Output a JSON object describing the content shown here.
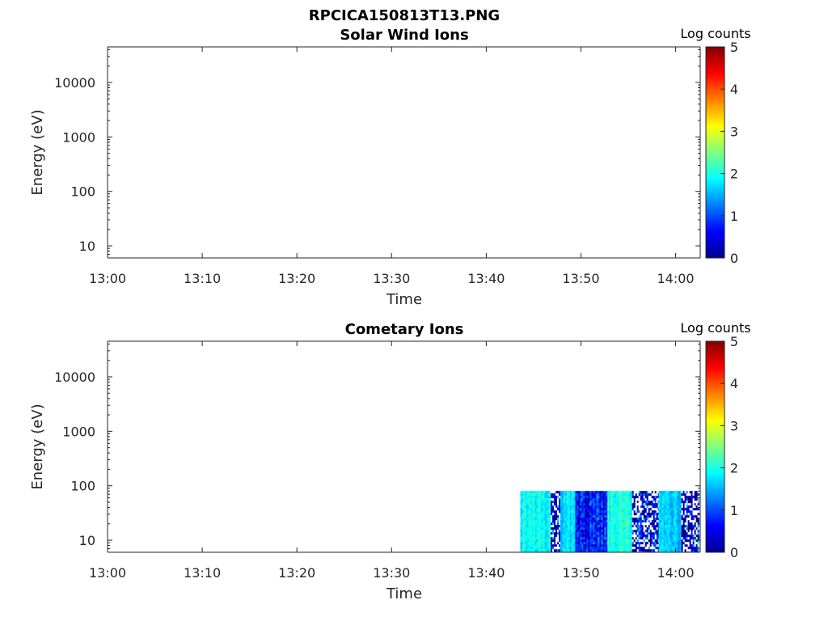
{
  "figure_title": "RPCICA150813T13.PNG",
  "colormap": "jet",
  "chart_data": [
    {
      "type": "heatmap",
      "title": "Solar Wind Ions",
      "xlabel": "Time",
      "ylabel": "Energy (eV)",
      "yscale": "log",
      "xticks": [
        "13:00",
        "13:10",
        "13:20",
        "13:30",
        "13:40",
        "13:50",
        "14:00"
      ],
      "yticks": [
        "10",
        "100",
        "1000",
        "10000"
      ],
      "colorbar": {
        "label": "Log counts",
        "ticks": [
          "0",
          "1",
          "2",
          "3",
          "4",
          "5"
        ],
        "range": [
          0,
          5
        ]
      },
      "data": []
    },
    {
      "type": "heatmap",
      "title": "Cometary Ions",
      "xlabel": "Time",
      "ylabel": "Energy (eV)",
      "yscale": "log",
      "xticks": [
        "13:00",
        "13:10",
        "13:20",
        "13:30",
        "13:40",
        "13:50",
        "14:00"
      ],
      "yticks": [
        "10",
        "100",
        "1000",
        "10000"
      ],
      "colorbar": {
        "label": "Log counts",
        "ticks": [
          "0",
          "1",
          "2",
          "3",
          "4",
          "5"
        ],
        "range": [
          0,
          5
        ]
      },
      "data": [
        {
          "t_start": "13:43:36",
          "t_end": "13:46:48",
          "e_max": 80,
          "log_counts": 1.9,
          "variability": "low"
        },
        {
          "t_start": "13:46:48",
          "t_end": "13:47:48",
          "e_max": 80,
          "log_counts": 0.6,
          "variability": "high"
        },
        {
          "t_start": "13:47:48",
          "t_end": "13:49:24",
          "e_max": 80,
          "log_counts": 1.7,
          "variability": "low"
        },
        {
          "t_start": "13:49:24",
          "t_end": "13:52:48",
          "e_max": 80,
          "log_counts": 0.7,
          "variability": "medium"
        },
        {
          "t_start": "13:52:48",
          "t_end": "13:55:24",
          "e_max": 80,
          "log_counts": 2.0,
          "variability": "low"
        },
        {
          "t_start": "13:55:24",
          "t_end": "13:58:12",
          "e_max": 80,
          "log_counts": 0.3,
          "variability": "high"
        },
        {
          "t_start": "13:58:12",
          "t_end": "14:00:36",
          "e_max": 80,
          "log_counts": 1.6,
          "variability": "low"
        },
        {
          "t_start": "14:00:36",
          "t_end": "14:02:24",
          "e_max": 80,
          "log_counts": 0.3,
          "variability": "high"
        }
      ]
    }
  ]
}
